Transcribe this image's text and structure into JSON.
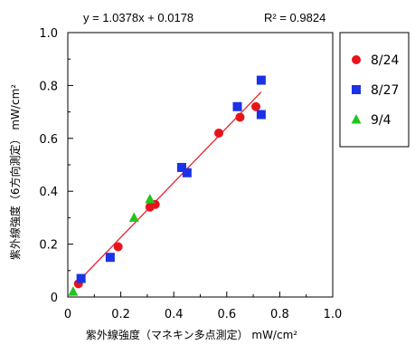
{
  "chart_data": {
    "type": "scatter",
    "title": "",
    "equation": "y = 1.0378x + 0.0178",
    "r2_label": "R² = 0.9824",
    "xlabel": "紫外線強度（マネキン多点測定） mW/cm²",
    "ylabel": "紫外線強度（6方向測定） mW/cm²",
    "xlim": [
      0,
      1.0
    ],
    "ylim": [
      0,
      1.0
    ],
    "x_ticks": [
      "0",
      "0.2",
      "0.4",
      "0.6",
      "0.8",
      "1.0"
    ],
    "y_ticks": [
      "0",
      "0.2",
      "0.4",
      "0.6",
      "0.8",
      "1.0"
    ],
    "grid": false,
    "legend": "right",
    "series": [
      {
        "name": "8/24",
        "marker": "circle",
        "color": "#e8141c",
        "points": [
          [
            0.04,
            0.05
          ],
          [
            0.19,
            0.19
          ],
          [
            0.31,
            0.34
          ],
          [
            0.33,
            0.35
          ],
          [
            0.57,
            0.62
          ],
          [
            0.65,
            0.68
          ],
          [
            0.71,
            0.72
          ]
        ]
      },
      {
        "name": "8/27",
        "marker": "square",
        "color": "#1c32e6",
        "points": [
          [
            0.05,
            0.07
          ],
          [
            0.16,
            0.15
          ],
          [
            0.43,
            0.49
          ],
          [
            0.45,
            0.47
          ],
          [
            0.64,
            0.72
          ],
          [
            0.73,
            0.82
          ],
          [
            0.73,
            0.69
          ]
        ]
      },
      {
        "name": "9/4",
        "marker": "triangle",
        "color": "#22c41e",
        "points": [
          [
            0.02,
            0.02
          ],
          [
            0.25,
            0.3
          ],
          [
            0.31,
            0.37
          ]
        ]
      }
    ],
    "trendline": {
      "slope": 1.0378,
      "intercept": 0.0178,
      "x_range": [
        0.03,
        0.73
      ],
      "color": "#e8141c"
    }
  }
}
